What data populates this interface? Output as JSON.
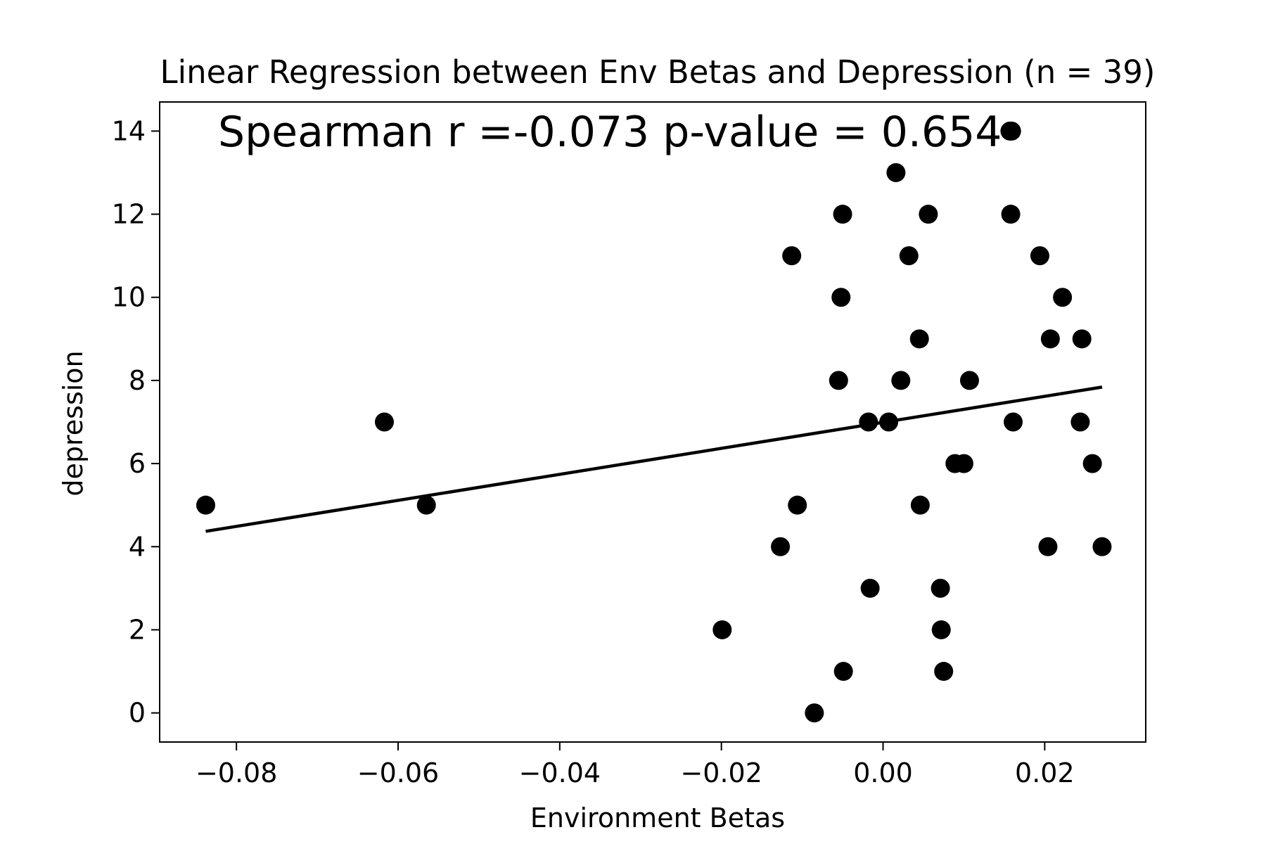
{
  "chart_data": {
    "type": "scatter",
    "title": "Linear Regression between Env Betas and Depression (n = 39)",
    "xlabel": "Environment Betas",
    "ylabel": "depression",
    "annotation": "Spearman r =-0.073  p-value = 0.654",
    "xlim": [
      -0.0895,
      0.0325
    ],
    "ylim": [
      -0.7,
      14.7
    ],
    "xticks": [
      -0.08,
      -0.06,
      -0.04,
      -0.02,
      0.0,
      0.02
    ],
    "xtick_labels": [
      "−0.08",
      "−0.06",
      "−0.04",
      "−0.02",
      "0.00",
      "0.02"
    ],
    "yticks": [
      0,
      2,
      4,
      6,
      8,
      10,
      12,
      14
    ],
    "ytick_labels": [
      "0",
      "2",
      "4",
      "6",
      "8",
      "10",
      "12",
      "14"
    ],
    "grid": false,
    "marker_color": "#000000",
    "line_color": "#000000",
    "points": [
      {
        "x": -0.0838,
        "y": 5
      },
      {
        "x": -0.0617,
        "y": 7
      },
      {
        "x": -0.0565,
        "y": 5
      },
      {
        "x": -0.0199,
        "y": 2
      },
      {
        "x": -0.0127,
        "y": 4
      },
      {
        "x": -0.0113,
        "y": 11
      },
      {
        "x": -0.0106,
        "y": 5
      },
      {
        "x": -0.0085,
        "y": 0
      },
      {
        "x": -0.0055,
        "y": 8
      },
      {
        "x": -0.0052,
        "y": 10
      },
      {
        "x": -0.005,
        "y": 12
      },
      {
        "x": -0.0049,
        "y": 1
      },
      {
        "x": -0.0018,
        "y": 7
      },
      {
        "x": -0.0016,
        "y": 3
      },
      {
        "x": 0.0007,
        "y": 7
      },
      {
        "x": 0.0016,
        "y": 13
      },
      {
        "x": 0.0022,
        "y": 8
      },
      {
        "x": 0.0032,
        "y": 11
      },
      {
        "x": 0.0045,
        "y": 9
      },
      {
        "x": 0.0046,
        "y": 5
      },
      {
        "x": 0.0056,
        "y": 12
      },
      {
        "x": 0.0071,
        "y": 3
      },
      {
        "x": 0.0072,
        "y": 2
      },
      {
        "x": 0.0075,
        "y": 1
      },
      {
        "x": 0.0089,
        "y": 6
      },
      {
        "x": 0.01,
        "y": 6
      },
      {
        "x": 0.0107,
        "y": 8
      },
      {
        "x": 0.0157,
        "y": 14
      },
      {
        "x": 0.0158,
        "y": 12
      },
      {
        "x": 0.0161,
        "y": 7
      },
      {
        "x": 0.0194,
        "y": 11
      },
      {
        "x": 0.0204,
        "y": 4
      },
      {
        "x": 0.0207,
        "y": 9
      },
      {
        "x": 0.0222,
        "y": 10
      },
      {
        "x": 0.0244,
        "y": 7
      },
      {
        "x": 0.0246,
        "y": 9
      },
      {
        "x": 0.0259,
        "y": 6
      },
      {
        "x": 0.0271,
        "y": 4
      },
      {
        "x": 0.0159,
        "y": 14
      }
    ],
    "regression_line": {
      "x": [
        -0.0838,
        0.0271
      ],
      "y": [
        4.37,
        7.84
      ]
    }
  }
}
